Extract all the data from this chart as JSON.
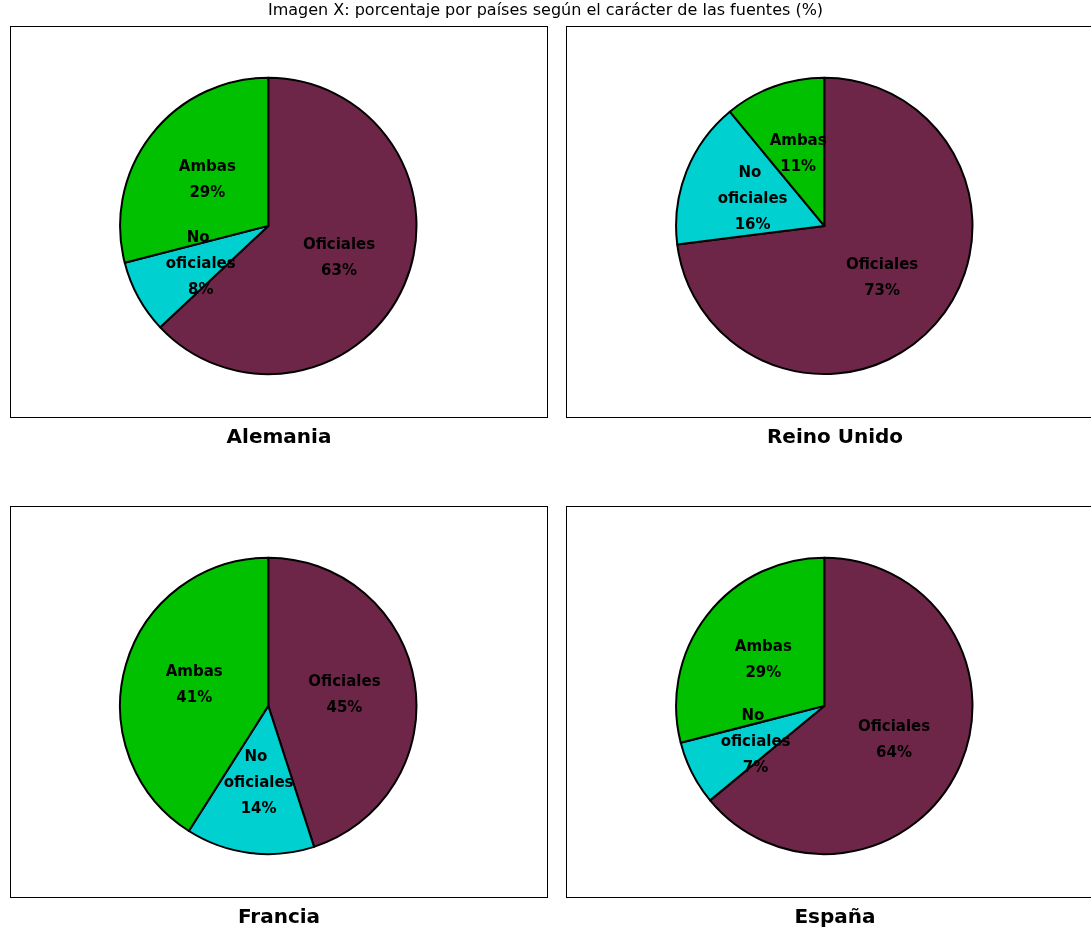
{
  "chart_data": [
    {
      "type": "pie",
      "title": "Alemania",
      "annotations": [
        "Imagen X: porcentaje por países según el carácter de las fuentes (%)"
      ],
      "categories": [
        "Oficiales",
        "No oficiales",
        "Ambas"
      ],
      "values": [
        63,
        8,
        29
      ],
      "value_labels": [
        "63%",
        "8%",
        "29%"
      ],
      "colors": [
        "#6e2648",
        "#00d0d0",
        "#00c000"
      ]
    },
    {
      "type": "pie",
      "title": "Reino Unido",
      "categories": [
        "Oficiales",
        "No oficiales",
        "Ambas"
      ],
      "values": [
        73,
        16,
        11
      ],
      "value_labels": [
        "73%",
        "16%",
        "11%"
      ],
      "colors": [
        "#6e2648",
        "#00d0d0",
        "#00c000"
      ]
    },
    {
      "type": "pie",
      "title": "Francia",
      "categories": [
        "Oficiales",
        "No oficiales",
        "Ambas"
      ],
      "values": [
        45,
        14,
        41
      ],
      "value_labels": [
        "45%",
        "14%",
        "41%"
      ],
      "colors": [
        "#6e2648",
        "#00d0d0",
        "#00c000"
      ]
    },
    {
      "type": "pie",
      "title": "España",
      "categories": [
        "Oficiales",
        "No oficiales",
        "Ambas"
      ],
      "values": [
        64,
        7,
        29
      ],
      "value_labels": [
        "64%",
        "7%",
        "29%"
      ],
      "colors": [
        "#6e2648",
        "#00d0d0",
        "#00c000"
      ]
    }
  ]
}
